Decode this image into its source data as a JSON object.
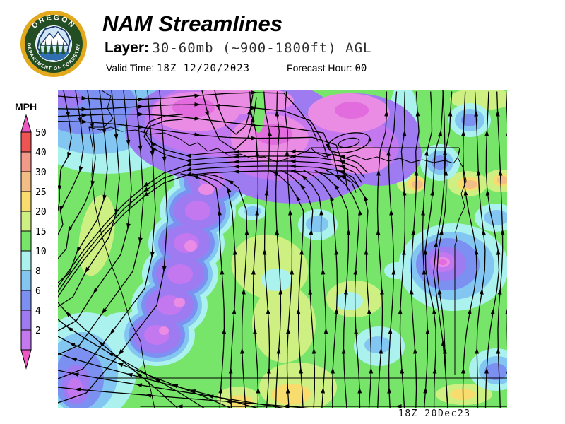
{
  "header": {
    "title": "NAM Streamlines",
    "layer_label": "Layer:",
    "layer_value": "30-60mb (~900-1800ft) AGL",
    "valid_time_label": "Valid Time:",
    "valid_time_value": "18Z 12/20/2023",
    "forecast_hour_label": "Forecast Hour:",
    "forecast_hour_value": "00"
  },
  "logo": {
    "ring_top_text": "OREGON",
    "ring_bottom_text": "DEPARTMENT OF FORESTRY"
  },
  "legend": {
    "unit_label": "MPH",
    "tick_labels": [
      "50",
      "40",
      "30",
      "25",
      "20",
      "15",
      "10",
      "8",
      "6",
      "4",
      "2"
    ],
    "segment_colors": [
      "#EE5454",
      "#F2998A",
      "#F2BE85",
      "#F8DC6E",
      "#CEF083",
      "#77E56A",
      "#ABF2EF",
      "#84C6F2",
      "#7B90F0",
      "#9F7BF2",
      "#C478F0"
    ],
    "arrow_color": "#F056C4",
    "calm_pink": "#EA8CE4",
    "calm_magenta": "#E26BDE"
  },
  "map": {
    "timestamp": "18Z 20Dec23",
    "base_wind_color": "#77E56A"
  }
}
